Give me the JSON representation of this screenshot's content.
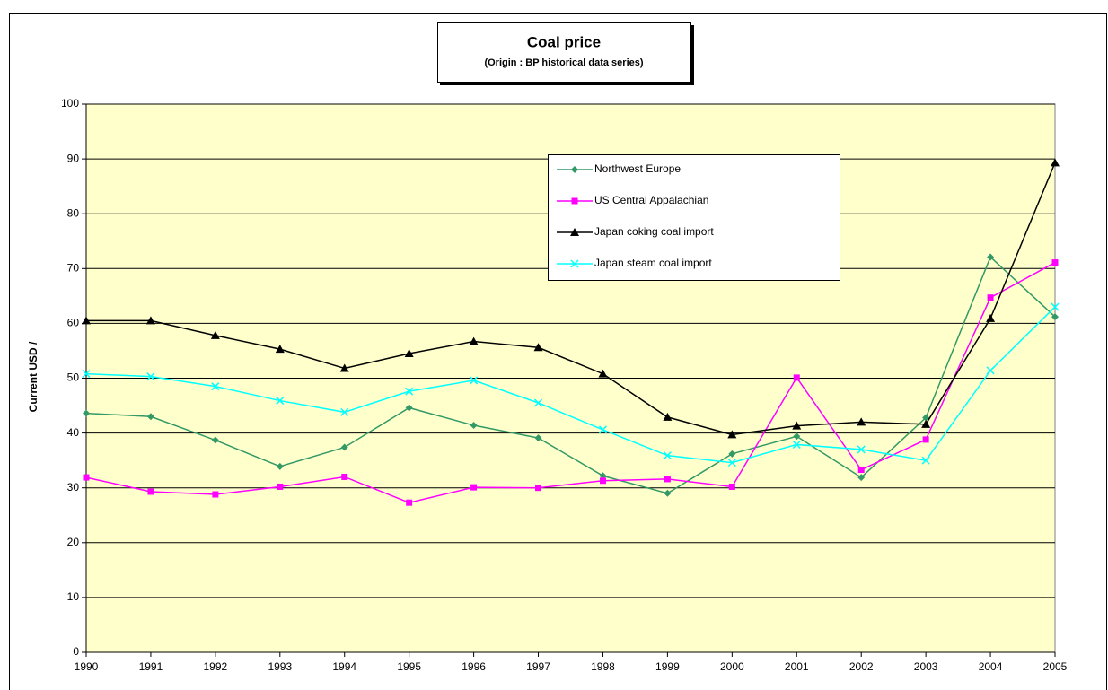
{
  "chart_data": {
    "type": "line",
    "title": "Coal price",
    "subtitle": "(Origin : BP historical data series)",
    "y_label": "Current USD /",
    "categories": [
      "1990",
      "1991",
      "1992",
      "1993",
      "1994",
      "1995",
      "1996",
      "1997",
      "1998",
      "1999",
      "2000",
      "2001",
      "2002",
      "2003",
      "2004",
      "2005"
    ],
    "series": [
      {
        "name": "Northwest Europe",
        "color": "#339966",
        "marker": "diamond",
        "values": [
          43.6,
          43.0,
          38.7,
          33.9,
          37.4,
          44.6,
          41.4,
          39.1,
          32.2,
          29.0,
          36.2,
          39.4,
          31.9,
          42.8,
          72.1,
          61.2
        ]
      },
      {
        "name": "US Central Appalachian",
        "color": "#ff00ff",
        "marker": "square",
        "values": [
          31.9,
          29.3,
          28.8,
          30.2,
          32.0,
          27.3,
          30.1,
          30.0,
          31.3,
          31.6,
          30.2,
          50.1,
          33.3,
          38.8,
          64.7,
          71.1
        ]
      },
      {
        "name": "Japan coking coal import",
        "color": "#000000",
        "marker": "triangle",
        "values": [
          60.5,
          60.5,
          57.8,
          55.3,
          51.8,
          54.5,
          56.7,
          55.6,
          50.8,
          42.9,
          39.7,
          41.3,
          42.0,
          41.6,
          60.9,
          89.3
        ]
      },
      {
        "name": "Japan steam coal import",
        "color": "#00ffff",
        "marker": "x",
        "values": [
          50.8,
          50.3,
          48.5,
          45.9,
          43.8,
          47.6,
          49.6,
          45.5,
          40.6,
          35.9,
          34.6,
          37.9,
          37.0,
          35.0,
          51.4,
          63.0
        ]
      }
    ],
    "ylim": [
      0,
      100
    ],
    "yticks": [
      0,
      10,
      20,
      30,
      40,
      50,
      60,
      70,
      80,
      90,
      100
    ],
    "grid": true,
    "plot_background": "#ffffcc"
  }
}
